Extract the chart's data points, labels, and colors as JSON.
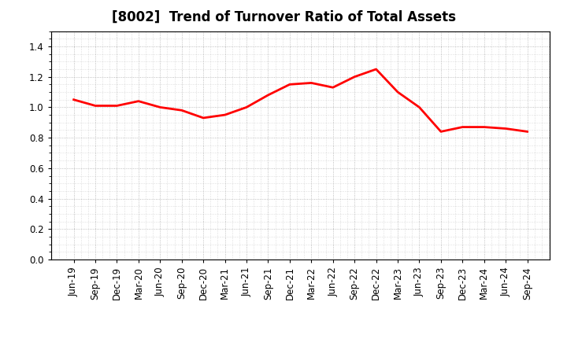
{
  "title": "[8002]  Trend of Turnover Ratio of Total Assets",
  "x_labels": [
    "Jun-19",
    "Sep-19",
    "Dec-19",
    "Mar-20",
    "Jun-20",
    "Sep-20",
    "Dec-20",
    "Mar-21",
    "Jun-21",
    "Sep-21",
    "Dec-21",
    "Mar-22",
    "Jun-22",
    "Sep-22",
    "Dec-22",
    "Mar-23",
    "Jun-23",
    "Sep-23",
    "Dec-23",
    "Mar-24",
    "Jun-24",
    "Sep-24"
  ],
  "y_values": [
    1.05,
    1.01,
    1.01,
    1.04,
    1.0,
    0.98,
    0.93,
    0.95,
    1.0,
    1.08,
    1.15,
    1.16,
    1.13,
    1.2,
    1.25,
    1.1,
    1.0,
    0.84,
    0.87,
    0.87,
    0.86,
    0.84
  ],
  "line_color": "#FF0000",
  "line_width": 2.0,
  "ylim": [
    0.0,
    1.5
  ],
  "yticks": [
    0.0,
    0.2,
    0.4,
    0.6,
    0.8,
    1.0,
    1.2,
    1.4
  ],
  "background_color": "#ffffff",
  "plot_bg_color": "#ffffff",
  "grid_color": "#999999",
  "title_fontsize": 12,
  "tick_fontsize": 8.5
}
